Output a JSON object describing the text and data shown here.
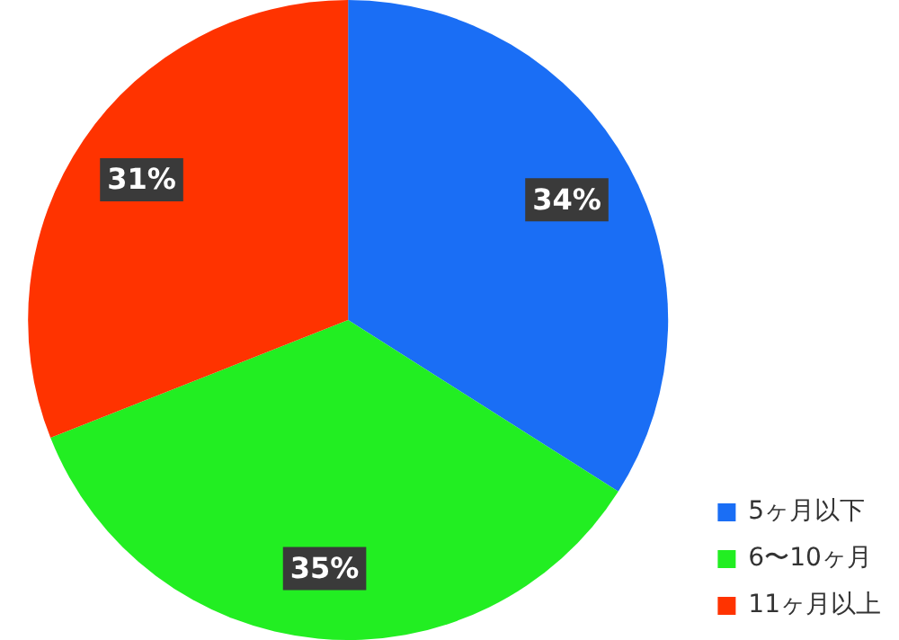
{
  "chart_data": {
    "type": "pie",
    "categories": [
      "5ヶ月以下",
      "6〜10ヶ月",
      "11ヶ月以上"
    ],
    "values": [
      34,
      35,
      31
    ],
    "colors": [
      "#1a6ef5",
      "#22ee22",
      "#ff3300"
    ],
    "value_labels": [
      "34%",
      "35%",
      "31%"
    ],
    "legend": "bottom right"
  }
}
